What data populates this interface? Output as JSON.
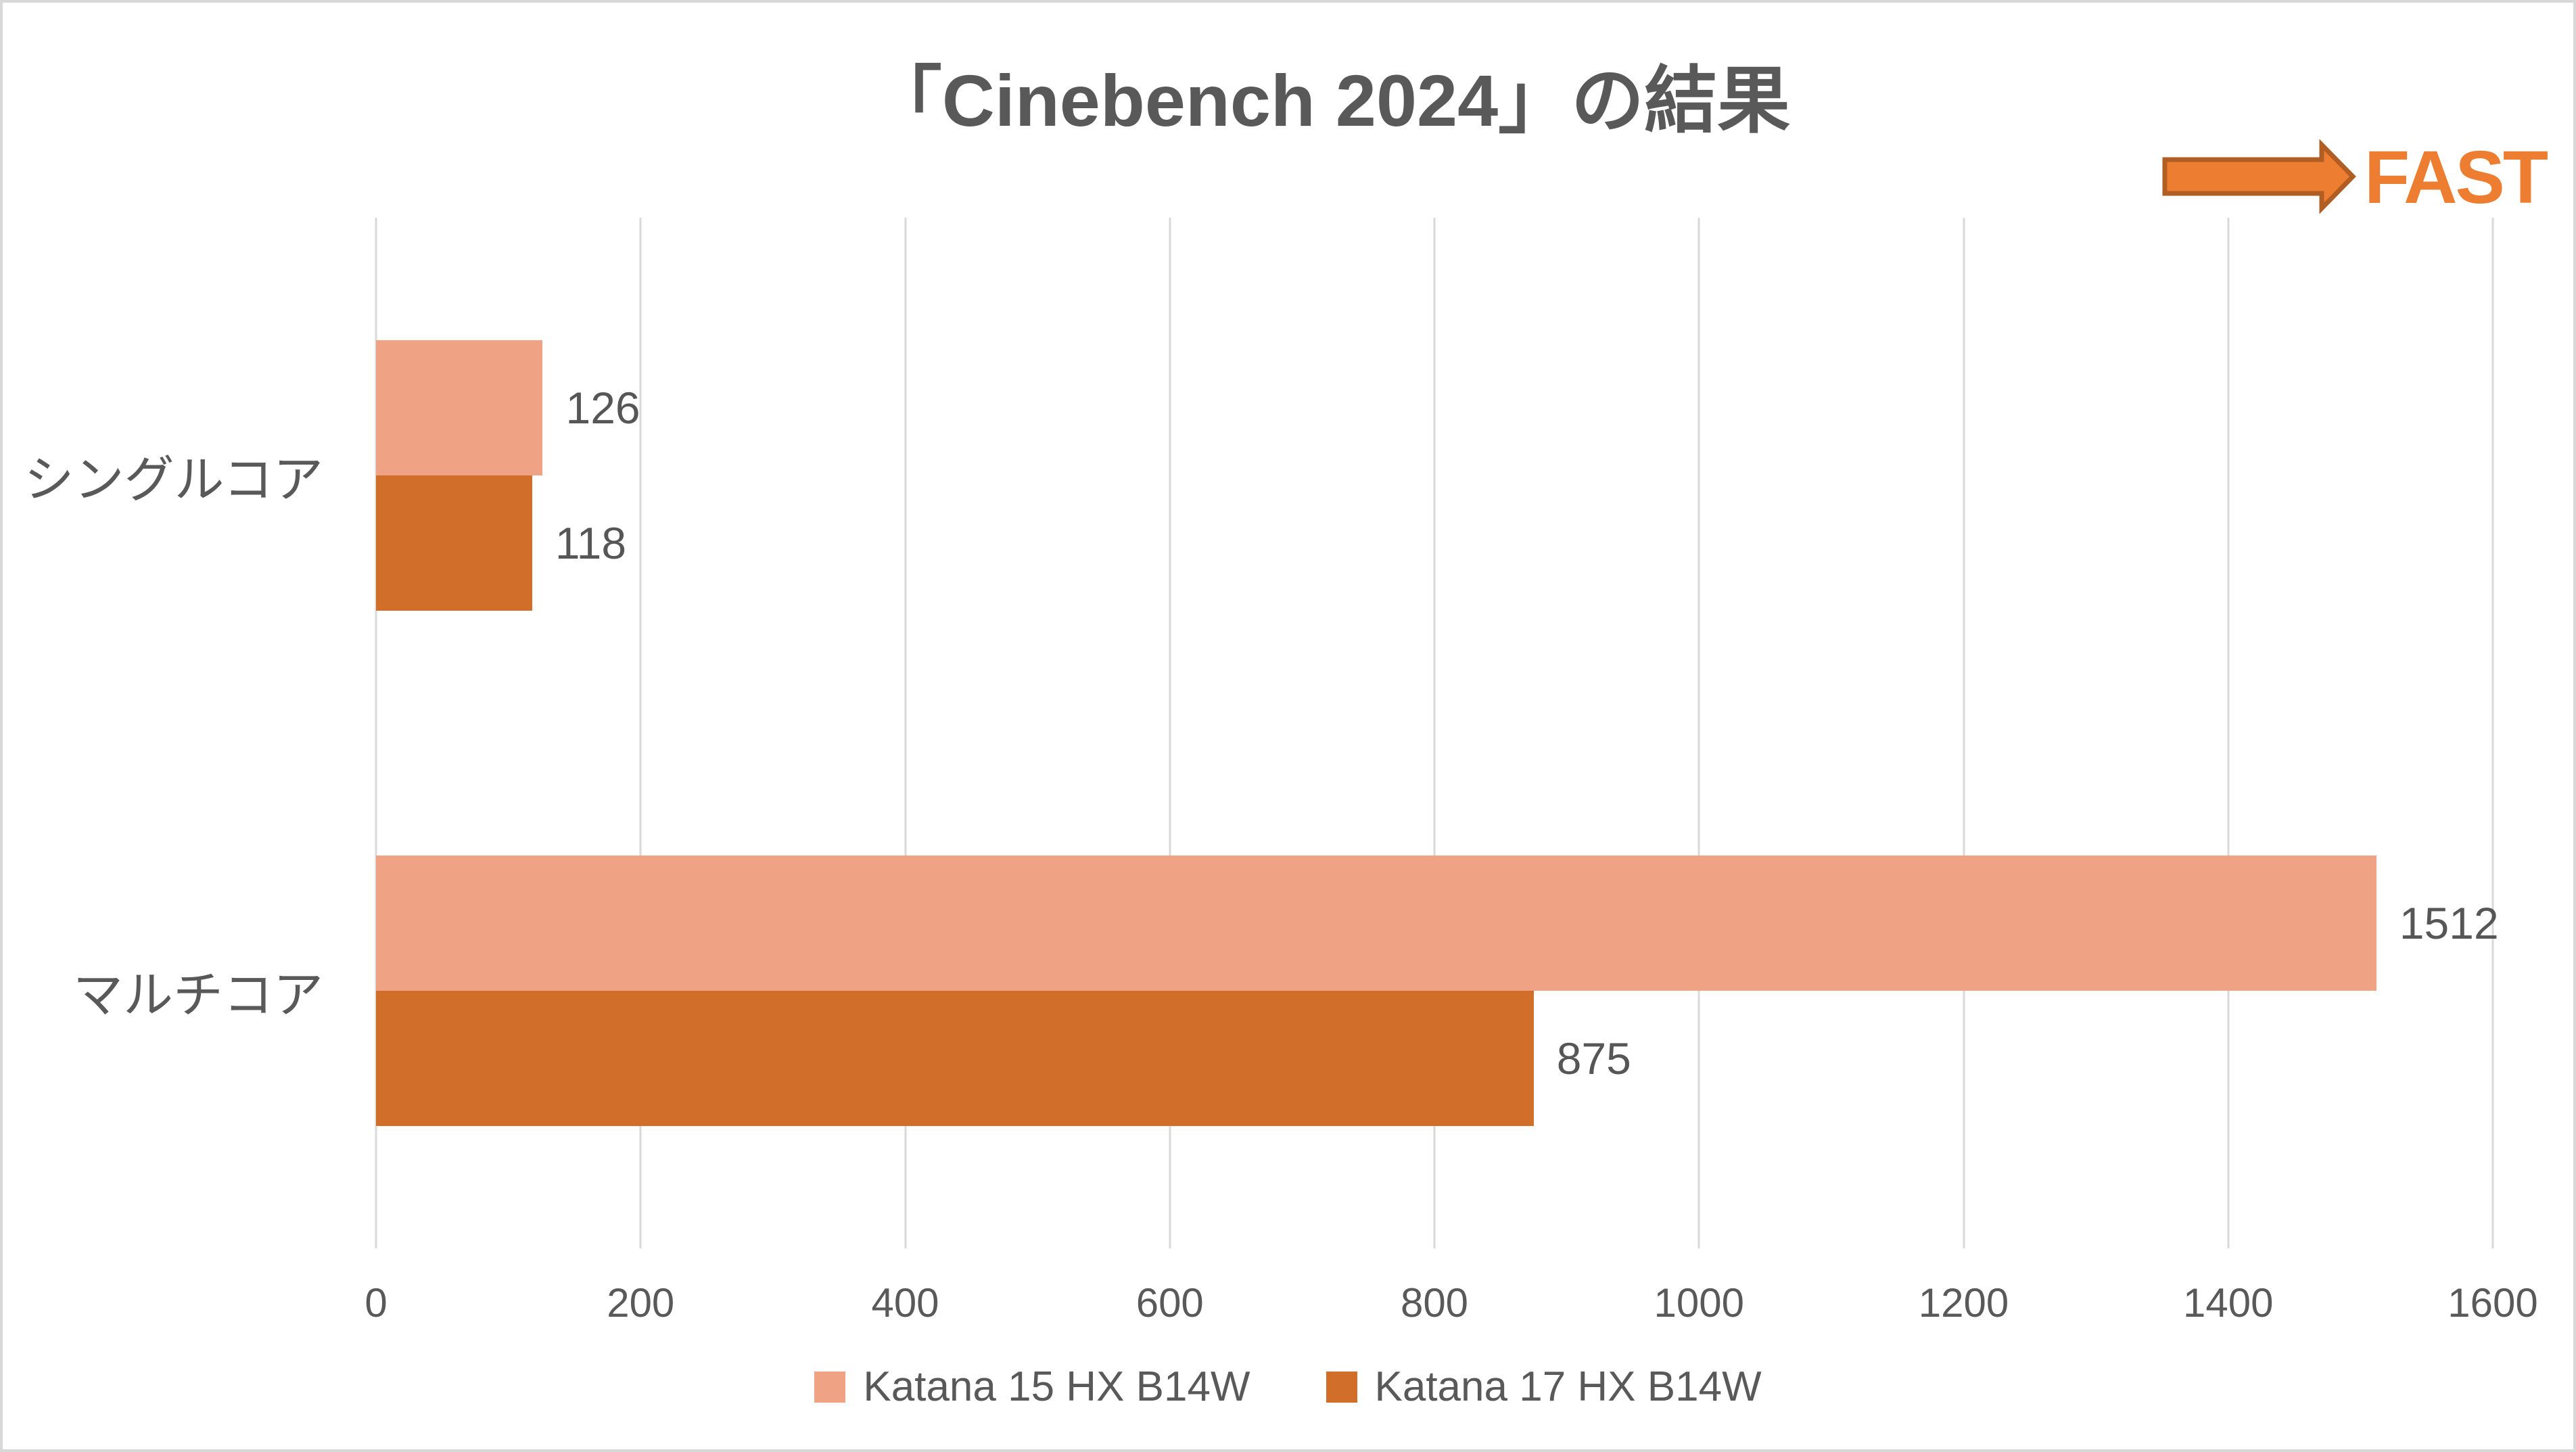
{
  "chart_data": {
    "type": "bar",
    "orientation": "horizontal",
    "title": "「Cinebench 2024」の結果",
    "categories": [
      "シングルコア",
      "マルチコア"
    ],
    "series": [
      {
        "name": "Katana 15 HX B14W",
        "color": "#EFA284",
        "values": [
          126,
          1512
        ]
      },
      {
        "name": "Katana 17 HX B14W",
        "color": "#D06E2A",
        "values": [
          118,
          875
        ]
      }
    ],
    "xlim": [
      0,
      1600
    ],
    "x_ticks": [
      "0",
      "200",
      "400",
      "600",
      "800",
      "1000",
      "1200",
      "1400",
      "1600"
    ],
    "grid": true,
    "legend_position": "bottom",
    "data_labels": true
  },
  "annotations": {
    "fast_label": "FAST",
    "arrow_color": "#ED7D31",
    "arrow_border": "#B05E24"
  },
  "colors": {
    "text": "#595959",
    "gridline": "#D9D9D9",
    "background": "#FFFFFF",
    "frame_border": "#D8D8D8"
  }
}
